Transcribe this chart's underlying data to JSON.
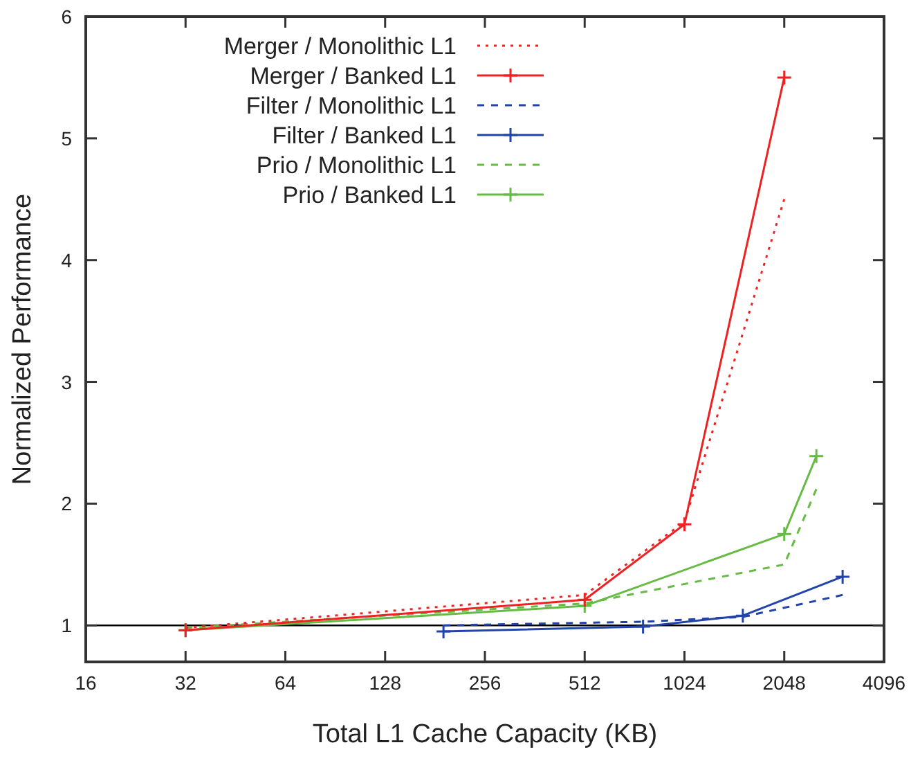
{
  "chart_data": {
    "type": "line",
    "xlabel": "Total L1 Cache Capacity (KB)",
    "ylabel": "Normalized Performance",
    "log": "x",
    "xlim": [
      16,
      4096
    ],
    "xticks": [
      16,
      32,
      64,
      128,
      256,
      512,
      1024,
      2048,
      4096
    ],
    "ylim": [
      0.7,
      6
    ],
    "yticks": [
      1,
      2,
      3,
      4,
      5,
      6
    ],
    "grid": false,
    "legend": "top left",
    "ref_lines": [
      {
        "axis": "y",
        "value": 1,
        "color": "#000000"
      }
    ],
    "series": [
      {
        "name": "Merger / Monolithic L1",
        "color": "#ee2222",
        "x": [
          32,
          512,
          1024,
          2048
        ],
        "values": [
          0.98,
          1.25,
          1.85,
          4.5
        ],
        "line_style": "dotted",
        "marker": "none"
      },
      {
        "name": "Merger / Banked L1",
        "color": "#ee2222",
        "x": [
          32,
          512,
          1024,
          2048
        ],
        "values": [
          0.96,
          1.21,
          1.83,
          5.5
        ],
        "line_style": "solid",
        "marker": "cross"
      },
      {
        "name": "Filter / Monolithic L1",
        "color": "#2244aa",
        "x": [
          192,
          768,
          1536,
          3072
        ],
        "values": [
          1.0,
          1.03,
          1.07,
          1.25
        ],
        "line_style": "dashed",
        "marker": "none"
      },
      {
        "name": "Filter / Banked L1",
        "color": "#2244aa",
        "x": [
          192,
          768,
          1536,
          3072
        ],
        "values": [
          0.95,
          0.99,
          1.08,
          1.4
        ],
        "line_style": "solid",
        "marker": "cross"
      },
      {
        "name": "Prio / Monolithic L1",
        "color": "#66bb44",
        "x": [
          32,
          512,
          2048,
          2560
        ],
        "values": [
          0.98,
          1.18,
          1.5,
          2.12
        ],
        "line_style": "dashed",
        "marker": "none"
      },
      {
        "name": "Prio / Banked L1",
        "color": "#66bb44",
        "x": [
          32,
          512,
          2048,
          2560
        ],
        "values": [
          0.96,
          1.16,
          1.75,
          2.39
        ],
        "line_style": "solid",
        "marker": "cross"
      }
    ]
  }
}
